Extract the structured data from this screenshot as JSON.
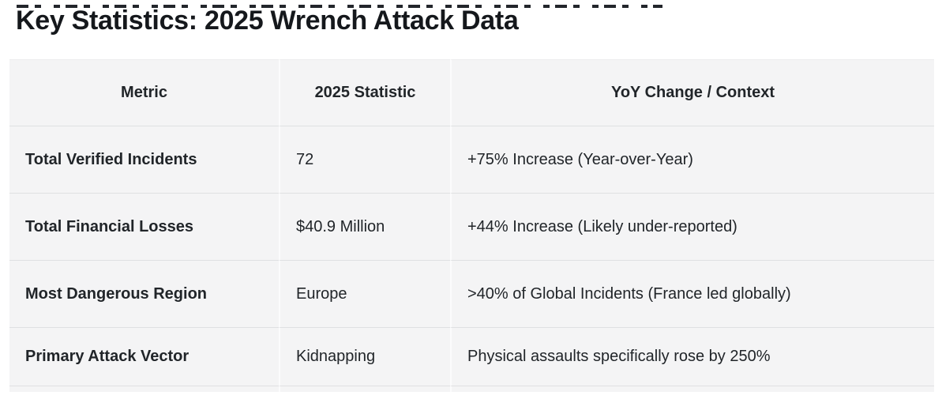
{
  "page": {
    "title": "Key Statistics: 2025 Wrench Attack Data"
  },
  "colors": {
    "page_background": "#ffffff",
    "cell_background": "#f4f4f5",
    "row_divider": "#dfe0e2",
    "column_divider": "#fbfbfc",
    "text": "#212529",
    "title_text": "#15181c"
  },
  "table": {
    "columns": [
      "Metric",
      "2025 Statistic",
      "YoY Change / Context"
    ],
    "rows": [
      [
        "Total Verified Incidents",
        "72",
        "+75% Increase (Year-over-Year)"
      ],
      [
        "Total Financial Losses",
        "$40.9 Million",
        "+44% Increase (Likely under-reported)"
      ],
      [
        "Most Dangerous Region",
        "Europe",
        ">40% of Global Incidents (France led globally)"
      ],
      [
        "Primary Attack Vector",
        "Kidnapping",
        "Physical assaults specifically rose by 250%"
      ]
    ]
  }
}
